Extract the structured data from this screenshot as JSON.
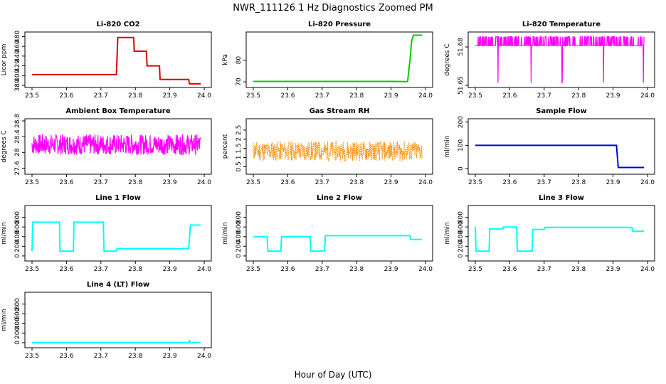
{
  "figure": {
    "title": "NWR_111126  1 Hz Diagnostics Zoomed PM",
    "xlabel": "Hour of Day (UTC)"
  },
  "chart_data": [
    {
      "type": "line",
      "title": "Li-820 CO2",
      "ylabel": "Licor ppm",
      "color": "#e00000",
      "xlim": [
        23.5,
        24.0
      ],
      "ylim": [
        380,
        485
      ],
      "xticks": [
        "23.5",
        "23.6",
        "23.7",
        "23.8",
        "23.9",
        "24.0"
      ],
      "yticks": [
        380,
        400,
        420,
        440,
        460,
        480
      ],
      "series": [
        {
          "x": [
            23.5,
            23.745,
            23.749,
            23.795,
            23.797,
            23.832,
            23.834,
            23.87,
            23.872,
            23.955,
            23.957,
            23.99
          ],
          "y": [
            402,
            402,
            478,
            478,
            450,
            450,
            420,
            420,
            392,
            392,
            383,
            383
          ]
        }
      ]
    },
    {
      "type": "line",
      "title": "Li-820 Pressure",
      "ylabel": "kPa",
      "color": "#00cc00",
      "xlim": [
        23.5,
        24.0
      ],
      "ylim": [
        68.4,
        92
      ],
      "xticks": [
        "23.5",
        "23.6",
        "23.7",
        "23.8",
        "23.9",
        "24.0"
      ],
      "yticks": [
        70,
        80
      ],
      "series": [
        {
          "x": [
            23.5,
            23.9,
            23.948,
            23.955,
            23.96,
            23.965,
            23.99
          ],
          "y": [
            70.2,
            70.2,
            70.1,
            80,
            89,
            91.5,
            91.5
          ]
        }
      ]
    },
    {
      "type": "line",
      "title": "Li-820 Temperature",
      "ylabel": "degrees C",
      "color": "#ff00ff",
      "xlim": [
        23.5,
        24.0
      ],
      "ylim": [
        51.65,
        51.69
      ],
      "xticks": [
        "23.5",
        "23.6",
        "23.7",
        "23.8",
        "23.9",
        "24.0"
      ],
      "yticks": [
        51.65,
        51.68
      ],
      "series": [
        {
          "x": [
            23.5,
            23.99
          ],
          "y": [
            51.681,
            51.681
          ]
        }
      ],
      "noise": {
        "seed": 3,
        "amp": 0,
        "spike_up": 51.688,
        "spikes": 160,
        "dips": [
          23.566,
          23.662,
          23.752,
          23.872,
          23.988
        ],
        "dip_to": 51.652
      }
    },
    {
      "type": "line",
      "title": "Ambient Box Temperature",
      "ylabel": "degrees C",
      "color": "#ff00ff",
      "xlim": [
        23.5,
        24.0
      ],
      "ylim": [
        27.5,
        28.8
      ],
      "xticks": [
        "23.5",
        "23.6",
        "23.7",
        "23.8",
        "23.9",
        "24.0"
      ],
      "yticks": [
        27.6,
        28.0,
        28.4,
        28.8
      ],
      "series": [
        {
          "x": [
            23.5,
            23.99
          ],
          "y": [
            28.2,
            28.2
          ]
        }
      ],
      "noise": {
        "seed": 7,
        "amp": 0.26
      }
    },
    {
      "type": "scatter",
      "title": "Gas Stream RH",
      "ylabel": "percent",
      "color": "#ff8c00",
      "xlim": [
        23.5,
        24.0
      ],
      "ylim": [
        0.2,
        3.0
      ],
      "xticks": [
        "23.5",
        "23.6",
        "23.7",
        "23.8",
        "23.9",
        "24.0"
      ],
      "yticks": [
        0.5,
        1.0,
        1.5,
        2.0,
        2.5
      ],
      "series": [
        {
          "x": [
            23.5,
            23.99
          ],
          "y": [
            1.35,
            1.35
          ]
        }
      ],
      "noise": {
        "seed": 11,
        "amp": 0.55
      }
    },
    {
      "type": "line",
      "title": "Sample Flow",
      "ylabel": "ml/min",
      "color": "#0000dd",
      "xlim": [
        23.5,
        24.0
      ],
      "ylim": [
        -15,
        205
      ],
      "xticks": [
        "23.5",
        "23.6",
        "23.7",
        "23.8",
        "23.9",
        "24.0"
      ],
      "yticks": [
        0,
        100,
        200
      ],
      "series": [
        {
          "x": [
            23.5,
            23.91,
            23.915,
            23.99
          ],
          "y": [
            100,
            100,
            5,
            5
          ]
        }
      ]
    },
    {
      "type": "line",
      "title": "Line 1 Flow",
      "ylabel": "ml/min",
      "color": "#00ffff",
      "xlim": [
        23.5,
        24.0
      ],
      "ylim": [
        -60,
        1000
      ],
      "xticks": [
        "23.5",
        "23.6",
        "23.7",
        "23.8",
        "23.9",
        "24.0"
      ],
      "yticks": [
        0,
        200,
        400,
        600,
        800
      ],
      "series": [
        {
          "x": [
            23.5,
            23.502,
            23.58,
            23.581,
            23.62,
            23.622,
            23.707,
            23.709,
            23.745,
            23.747,
            23.955,
            23.96,
            23.99
          ],
          "y": [
            100,
            700,
            700,
            100,
            100,
            700,
            700,
            100,
            100,
            150,
            150,
            640,
            640
          ]
        }
      ]
    },
    {
      "type": "line",
      "title": "Line 2 Flow",
      "ylabel": "ml/min",
      "color": "#00ffff",
      "xlim": [
        23.5,
        24.0
      ],
      "ylim": [
        -60,
        1000
      ],
      "xticks": [
        "23.5",
        "23.6",
        "23.7",
        "23.8",
        "23.9",
        "24.0"
      ],
      "yticks": [
        0,
        200,
        400,
        600,
        800
      ],
      "series": [
        {
          "x": [
            23.5,
            23.54,
            23.542,
            23.58,
            23.582,
            23.665,
            23.667,
            23.707,
            23.709,
            23.955,
            23.957,
            23.99
          ],
          "y": [
            400,
            400,
            100,
            100,
            400,
            400,
            100,
            100,
            420,
            420,
            340,
            340
          ]
        }
      ]
    },
    {
      "type": "line",
      "title": "Line 3 Flow",
      "ylabel": "ml/min",
      "color": "#00ffff",
      "xlim": [
        23.5,
        24.0
      ],
      "ylim": [
        -60,
        1000
      ],
      "xticks": [
        "23.5",
        "23.6",
        "23.7",
        "23.8",
        "23.9",
        "24.0"
      ],
      "yticks": [
        0,
        200,
        400,
        600,
        800
      ],
      "series": [
        {
          "x": [
            23.5,
            23.502,
            23.54,
            23.542,
            23.58,
            23.582,
            23.62,
            23.622,
            23.665,
            23.667,
            23.7,
            23.702,
            23.955,
            23.957,
            23.99
          ],
          "y": [
            600,
            100,
            100,
            560,
            560,
            600,
            600,
            100,
            100,
            550,
            550,
            590,
            590,
            510,
            510
          ]
        }
      ]
    },
    {
      "type": "line",
      "title": "Line 4 (LT) Flow",
      "ylabel": "ml/min",
      "color": "#00ffff",
      "xlim": [
        23.5,
        24.0
      ],
      "ylim": [
        -60,
        1000
      ],
      "xticks": [
        "23.5",
        "23.6",
        "23.7",
        "23.8",
        "23.9",
        "24.0"
      ],
      "yticks": [
        0,
        200,
        400,
        600,
        800
      ],
      "series": [
        {
          "x": [
            23.5,
            23.955,
            23.957,
            23.96,
            23.962,
            23.99
          ],
          "y": [
            5,
            5,
            40,
            10,
            5,
            5
          ]
        }
      ]
    }
  ]
}
